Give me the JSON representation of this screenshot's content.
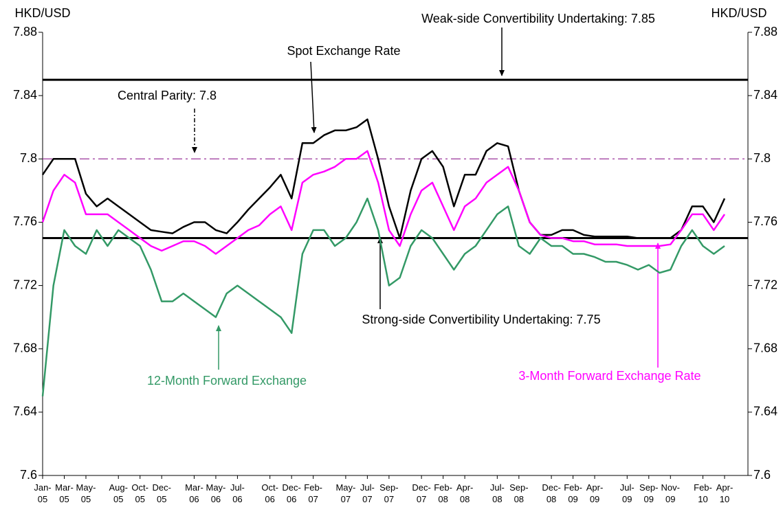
{
  "chart_data": {
    "type": "line",
    "ylabel": "HKD/USD",
    "y2label": "HKD/USD",
    "x": [
      "Jan-05",
      "Feb-05",
      "Mar-05",
      "Apr-05",
      "May-05",
      "Jun-05",
      "Jul-05",
      "Aug-05",
      "Sep-05",
      "Oct-05",
      "Nov-05",
      "Dec-05",
      "Jan-06",
      "Feb-06",
      "Mar-06",
      "Apr-06",
      "May-06",
      "Jun-06",
      "Jul-06",
      "Aug-06",
      "Sep-06",
      "Oct-06",
      "Nov-06",
      "Dec-06",
      "Jan-07",
      "Feb-07",
      "Mar-07",
      "Apr-07",
      "May-07",
      "Jun-07",
      "Jul-07",
      "Aug-07",
      "Sep-07",
      "Oct-07",
      "Nov-07",
      "Dec-07",
      "Jan-08",
      "Feb-08",
      "Mar-08",
      "Apr-08",
      "May-08",
      "Jun-08",
      "Jul-08",
      "Aug-08",
      "Sep-08",
      "Oct-08",
      "Nov-08",
      "Dec-08",
      "Jan-09",
      "Feb-09",
      "Mar-09",
      "Apr-09",
      "May-09",
      "Jun-09",
      "Jul-09",
      "Aug-09",
      "Sep-09",
      "Oct-09",
      "Nov-09",
      "Dec-09",
      "Jan-10",
      "Feb-10",
      "Mar-10",
      "Apr-10"
    ],
    "xticks": [
      "Jan-05",
      "Mar-05",
      "May-05",
      "Aug-05",
      "Oct-05",
      "Dec-05",
      "Mar-06",
      "May-06",
      "Jul-06",
      "Oct-06",
      "Dec-06",
      "Feb-07",
      "May-07",
      "Jul-07",
      "Sep-07",
      "Dec-07",
      "Feb-08",
      "Apr-08",
      "Jul-08",
      "Sep-08",
      "Dec-08",
      "Feb-09",
      "Apr-09",
      "Jul-09",
      "Sep-09",
      "Nov-09",
      "Feb-10",
      "Apr-10"
    ],
    "series": [
      {
        "name": "Spot Exchange Rate",
        "color": "#000000",
        "values": [
          7.79,
          7.8,
          7.8,
          7.8,
          7.778,
          7.77,
          7.775,
          7.77,
          7.765,
          7.76,
          7.755,
          7.754,
          7.753,
          7.757,
          7.76,
          7.76,
          7.755,
          7.753,
          7.76,
          7.768,
          7.775,
          7.782,
          7.79,
          7.775,
          7.81,
          7.81,
          7.815,
          7.818,
          7.818,
          7.82,
          7.825,
          7.8,
          7.77,
          7.75,
          7.78,
          7.8,
          7.805,
          7.795,
          7.77,
          7.79,
          7.79,
          7.805,
          7.81,
          7.808,
          7.78,
          7.76,
          7.752,
          7.752,
          7.755,
          7.755,
          7.752,
          7.751,
          7.751,
          7.751,
          7.751,
          7.75,
          7.75,
          7.75,
          7.75,
          7.755,
          7.77,
          7.77,
          7.76,
          7.775
        ]
      },
      {
        "name": "3-Month Forward Exchange Rate",
        "color": "#ff00ff",
        "values": [
          7.76,
          7.78,
          7.79,
          7.785,
          7.765,
          7.765,
          7.765,
          7.76,
          7.755,
          7.75,
          7.745,
          7.742,
          7.745,
          7.748,
          7.748,
          7.745,
          7.74,
          7.745,
          7.75,
          7.755,
          7.758,
          7.765,
          7.77,
          7.755,
          7.785,
          7.79,
          7.792,
          7.795,
          7.8,
          7.8,
          7.805,
          7.785,
          7.755,
          7.745,
          7.765,
          7.78,
          7.785,
          7.77,
          7.755,
          7.77,
          7.775,
          7.785,
          7.79,
          7.795,
          7.78,
          7.76,
          7.752,
          7.75,
          7.75,
          7.748,
          7.748,
          7.746,
          7.746,
          7.746,
          7.745,
          7.745,
          7.745,
          7.745,
          7.746,
          7.755,
          7.765,
          7.765,
          7.755,
          7.765
        ]
      },
      {
        "name": "12-Month Forward Exchange",
        "color": "#339966",
        "values": [
          7.65,
          7.72,
          7.755,
          7.745,
          7.74,
          7.755,
          7.745,
          7.755,
          7.75,
          7.745,
          7.73,
          7.71,
          7.71,
          7.715,
          7.71,
          7.705,
          7.7,
          7.715,
          7.72,
          7.715,
          7.71,
          7.705,
          7.7,
          7.69,
          7.74,
          7.755,
          7.755,
          7.745,
          7.75,
          7.76,
          7.775,
          7.755,
          7.72,
          7.725,
          7.745,
          7.755,
          7.75,
          7.74,
          7.73,
          7.74,
          7.745,
          7.755,
          7.765,
          7.77,
          7.745,
          7.74,
          7.75,
          7.745,
          7.745,
          7.74,
          7.74,
          7.738,
          7.735,
          7.735,
          7.733,
          7.73,
          7.733,
          7.728,
          7.73,
          7.745,
          7.755,
          7.745,
          7.74,
          7.745
        ]
      }
    ],
    "reference_lines": [
      {
        "label": "Weak-side Convertibility Undertaking: 7.85",
        "value": 7.85,
        "color": "#000000",
        "style": "solid"
      },
      {
        "label": "Central Parity: 7.8",
        "value": 7.8,
        "color": "#993399",
        "style": "dashdot"
      },
      {
        "label": "Strong-side Convertibility Undertaking: 7.75",
        "value": 7.75,
        "color": "#000000",
        "style": "solid"
      }
    ],
    "ylim": [
      7.6,
      7.88
    ],
    "yticks": [
      7.6,
      7.64,
      7.68,
      7.72,
      7.76,
      7.8,
      7.84,
      7.88
    ],
    "y2lim": [
      7.6,
      7.88
    ],
    "y2ticks": [
      7.6,
      7.64,
      7.68,
      7.72,
      7.76,
      7.8,
      7.84,
      7.88
    ],
    "grid": false
  }
}
